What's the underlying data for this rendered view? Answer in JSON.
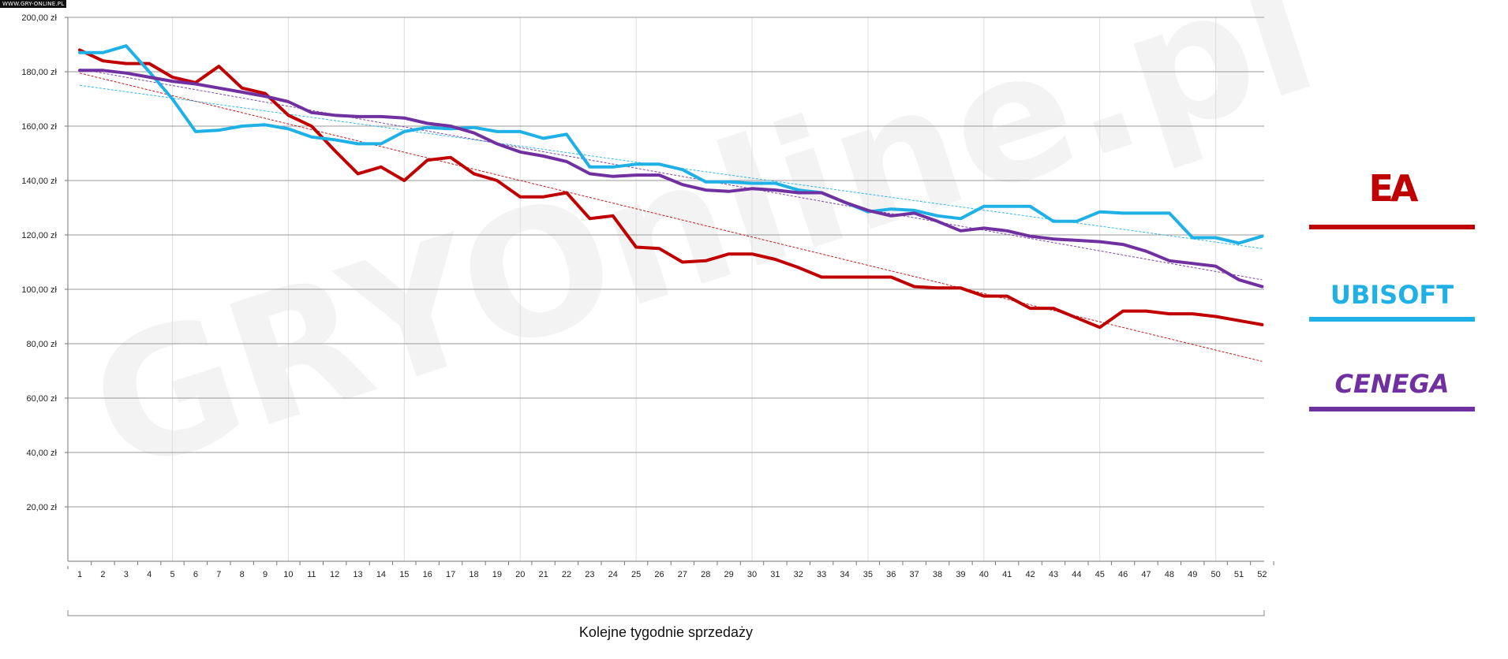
{
  "badge": "WWW.GRY-ONLINE.PL",
  "corner_mark": "",
  "watermark": "GRYOnline.pl",
  "chart_data": {
    "type": "line",
    "title": "",
    "xlabel": "Kolejne tygodnie sprzedaży",
    "ylabel": "",
    "ylim": [
      0,
      200
    ],
    "y_ticks": [
      "20,00 zł",
      "40,00 zł",
      "60,00 zł",
      "80,00 zł",
      "100,00 zł",
      "120,00 zł",
      "140,00 zł",
      "160,00 zł",
      "180,00 zł",
      "200,00 zł"
    ],
    "y_tick_values": [
      20,
      40,
      60,
      80,
      100,
      120,
      140,
      160,
      180,
      200
    ],
    "x": [
      1,
      2,
      3,
      4,
      5,
      6,
      7,
      8,
      9,
      10,
      11,
      12,
      13,
      14,
      15,
      16,
      17,
      18,
      19,
      20,
      21,
      22,
      23,
      24,
      25,
      26,
      27,
      28,
      29,
      30,
      31,
      32,
      33,
      34,
      35,
      36,
      37,
      38,
      39,
      40,
      41,
      42,
      43,
      44,
      45,
      46,
      47,
      48,
      49,
      50,
      51,
      52
    ],
    "grid": true,
    "legend_placement": "right",
    "series": [
      {
        "legend": "EA",
        "color": "#c00000",
        "values": [
          188,
          184,
          183,
          183,
          178,
          176,
          182,
          174,
          172,
          164,
          160,
          151,
          142.5,
          145,
          140,
          147.5,
          148.5,
          142.5,
          140,
          134,
          134,
          135.5,
          126,
          127,
          115.5,
          115,
          110,
          110.5,
          113,
          113,
          111,
          108,
          104.5,
          104.5,
          104.5,
          104.5,
          101,
          100.5,
          100.5,
          97.5,
          97.5,
          93,
          93,
          89.5,
          86,
          92,
          92,
          91,
          91,
          90,
          88.5,
          87
        ],
        "trend": [
          179.5,
          73.5
        ]
      },
      {
        "legend": "UBISOFT",
        "color": "#1fb0e6",
        "values": [
          187,
          187,
          189.5,
          180,
          170,
          158,
          158.5,
          160,
          160.5,
          159,
          156,
          155,
          153.5,
          153.5,
          158,
          159.5,
          159,
          159.5,
          158,
          158,
          155.5,
          157,
          145,
          145,
          146,
          146,
          144,
          139.5,
          139.5,
          139,
          139,
          136.5,
          135.5,
          132,
          128.5,
          129.5,
          129,
          127,
          126,
          130.5,
          130.5,
          130.5,
          125,
          125,
          128.5,
          128,
          128,
          128,
          119,
          119,
          117,
          119.5
        ],
        "trend": [
          175,
          115
        ]
      },
      {
        "legend": "CENEGA",
        "color": "#7030a0",
        "values": [
          180.5,
          180.5,
          179.5,
          178,
          176.5,
          175.5,
          174,
          172.5,
          171,
          169,
          165,
          164,
          163.5,
          163.5,
          163,
          161,
          160,
          157.5,
          153.5,
          150.5,
          149,
          147,
          142.5,
          141.5,
          142,
          142,
          138.5,
          136.5,
          136,
          137,
          136.5,
          135.5,
          135.5,
          132,
          129,
          127,
          128,
          125,
          121.5,
          122.5,
          121.5,
          119.5,
          118.5,
          118,
          117.5,
          116.5,
          114,
          110.5,
          109.5,
          108.5,
          103.5,
          101
        ],
        "trend": [
          181,
          103.5
        ]
      }
    ]
  }
}
